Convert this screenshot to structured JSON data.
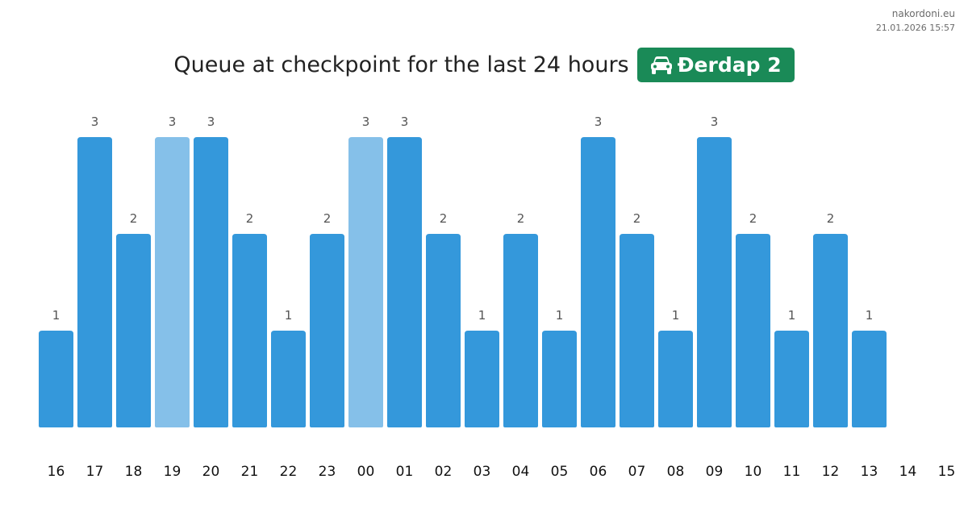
{
  "brand": {
    "site": "nakordoni.eu",
    "timestamp": "21.01.2026 15:57"
  },
  "header": {
    "title": "Queue at checkpoint for the last 24 hours",
    "checkpoint": "Đerdap 2",
    "checkpoint_icon": "car-icon"
  },
  "colors": {
    "bar": "#3498db",
    "bar_highlight": "#85c0e9",
    "badge": "#1a8a57"
  },
  "chart_data": {
    "type": "bar",
    "title": "Queue at checkpoint for the last 24 hours",
    "xlabel": "",
    "ylabel": "",
    "ylim": [
      0,
      3
    ],
    "grid": false,
    "categories": [
      "16",
      "17",
      "18",
      "19",
      "20",
      "21",
      "22",
      "23",
      "00",
      "01",
      "02",
      "03",
      "04",
      "05",
      "06",
      "07",
      "08",
      "09",
      "10",
      "11",
      "12",
      "13",
      "14",
      "15"
    ],
    "values": [
      1,
      3,
      2,
      3,
      3,
      2,
      1,
      2,
      3,
      3,
      2,
      1,
      2,
      1,
      3,
      2,
      1,
      3,
      2,
      1,
      2,
      1,
      null,
      null
    ],
    "highlighted": [
      "19",
      "00"
    ]
  }
}
